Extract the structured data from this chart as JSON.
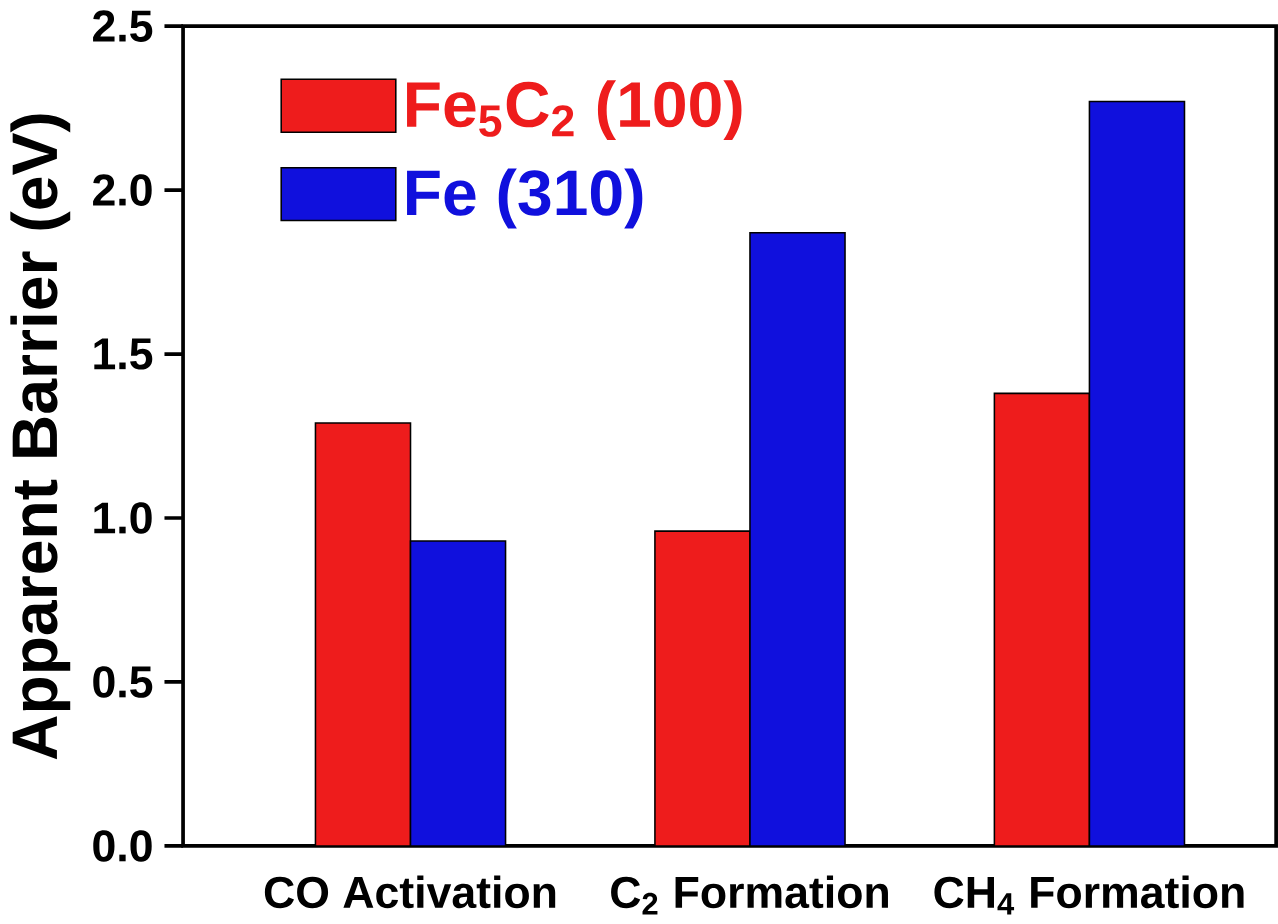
{
  "chart_data": {
    "type": "bar",
    "ylabel": "Apparent Barrier (eV)",
    "categories": [
      "CO Activation",
      "C$_{2}$ Formation",
      "CH$_{4}$ Formation"
    ],
    "series": [
      {
        "name": "Fe$_{5}$C$_{2}$ (100)",
        "color": "#ee1c1c",
        "values": [
          1.29,
          0.96,
          1.38
        ]
      },
      {
        "name": "Fe (310)",
        "color": "#1010dd",
        "values": [
          0.93,
          1.87,
          2.27
        ]
      }
    ],
    "ylim": [
      0,
      2.5
    ],
    "yticks": [
      {
        "value": 0,
        "label": "0.0"
      },
      {
        "value": 0.5,
        "label": "0.5"
      },
      {
        "value": 1,
        "label": "1.0"
      },
      {
        "value": 1.5,
        "label": "1.5"
      },
      {
        "value": 2,
        "label": "2.0"
      },
      {
        "value": 2.5,
        "label": "2.5"
      }
    ],
    "grid": false,
    "legend": "top left"
  }
}
